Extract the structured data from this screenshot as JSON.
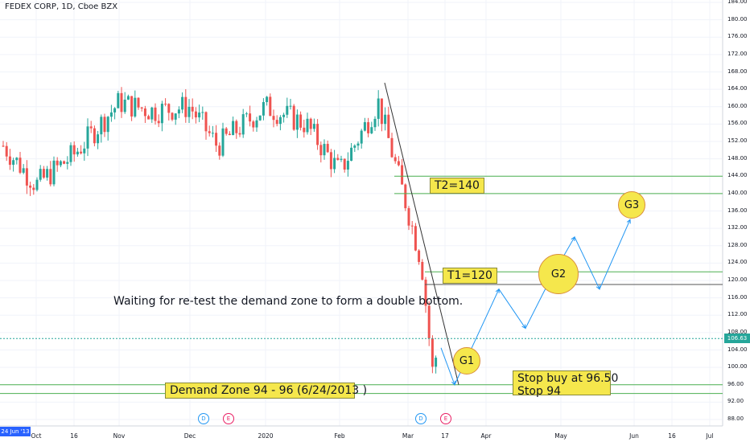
{
  "title": "FEDEX CORP, 1D, Cboe BZX",
  "annotation_text": "Waiting for re-test the demand zone to form a double bottom.",
  "labels": {
    "t2": "T2=140",
    "t1": "T1=120",
    "demand_zone": "Demand Zone  94 - 96 (6/24/2013 )",
    "stop_buy": "Stop buy at 96.50",
    "stop": "Stop 94",
    "g1": "G1",
    "g2": "G2",
    "g3": "G3"
  },
  "current_price": "106.63",
  "date_tag": "24 Jun '13",
  "badges": [
    {
      "letter": "D",
      "kind": "d",
      "x": "Dec"
    },
    {
      "letter": "E",
      "kind": "e",
      "x": "Dec"
    },
    {
      "letter": "D",
      "kind": "d",
      "x": "Mar"
    },
    {
      "letter": "E",
      "kind": "e",
      "x": "Mar"
    }
  ],
  "colors": {
    "bull": "#26a69a",
    "bear": "#ef5350",
    "projection": "#2196f3",
    "level_line": "#4caf50",
    "label_fill": "#f5e74c"
  },
  "chart_data": {
    "type": "candlestick",
    "title": "FEDEX CORP, 1D, Cboe BZX",
    "yaxis_ticks": [
      "184.00",
      "180.00",
      "176.00",
      "172.00",
      "168.00",
      "164.00",
      "160.00",
      "156.00",
      "152.00",
      "148.00",
      "144.00",
      "140.00",
      "136.00",
      "132.00",
      "128.00",
      "124.00",
      "120.00",
      "116.00",
      "112.00",
      "108.00",
      "104.00",
      "100.00",
      "96.00",
      "92.00",
      "88.00"
    ],
    "xaxis_ticks": [
      "Oct",
      "16",
      "Nov",
      "Dec",
      "2020",
      "Feb",
      "Mar",
      "17",
      "Apr",
      "May",
      "Jun",
      "16",
      "Jul"
    ],
    "ylim": [
      86,
      185
    ],
    "levels": [
      140,
      144,
      120,
      122,
      96,
      94
    ],
    "approx_close_path": [
      {
        "date": "Sep",
        "close": 151
      },
      {
        "date": "Oct",
        "close": 142
      },
      {
        "date": "Oct 16",
        "close": 149
      },
      {
        "date": "Nov",
        "close": 161
      },
      {
        "date": "Nov 15",
        "close": 159
      },
      {
        "date": "Dec",
        "close": 160
      },
      {
        "date": "Dec 18",
        "close": 151
      },
      {
        "date": "Jan",
        "close": 160
      },
      {
        "date": "Jan 15",
        "close": 156
      },
      {
        "date": "Feb",
        "close": 145
      },
      {
        "date": "Feb 20",
        "close": 161
      },
      {
        "date": "Mar",
        "close": 136
      },
      {
        "date": "Mar 10",
        "close": 124
      },
      {
        "date": "Mar 16",
        "close": 98
      },
      {
        "date": "Mar 19",
        "close": 106.63
      }
    ]
  }
}
